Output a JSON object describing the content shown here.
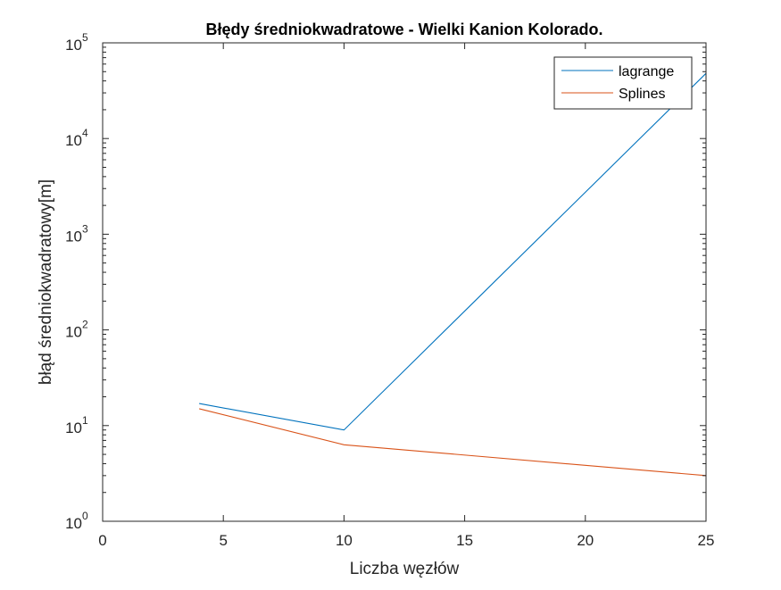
{
  "chart_data": {
    "type": "line",
    "title": "Błędy średniokwadratowe - Wielki Kanion Kolorado.",
    "xlabel": "Liczba węzłów",
    "ylabel": "błąd średniokwadratowy[m]",
    "xlim": [
      0,
      25
    ],
    "ylim": [
      1,
      100000
    ],
    "y_scale": "log",
    "x_ticks": [
      0,
      5,
      10,
      15,
      20,
      25
    ],
    "y_ticks": [
      {
        "value": 1,
        "base": "10",
        "exp": "0"
      },
      {
        "value": 10,
        "base": "10",
        "exp": "1"
      },
      {
        "value": 100,
        "base": "10",
        "exp": "2"
      },
      {
        "value": 1000,
        "base": "10",
        "exp": "3"
      },
      {
        "value": 10000,
        "base": "10",
        "exp": "4"
      },
      {
        "value": 100000,
        "base": "10",
        "exp": "5"
      }
    ],
    "grid": false,
    "legend_position": "top-right",
    "series": [
      {
        "name": "lagrange",
        "color": "#0072BD",
        "x": [
          4,
          10,
          25
        ],
        "y": [
          17,
          9,
          48000
        ]
      },
      {
        "name": "Splines",
        "color": "#D95319",
        "x": [
          4,
          10,
          25
        ],
        "y": [
          15,
          6.3,
          3
        ]
      }
    ]
  }
}
